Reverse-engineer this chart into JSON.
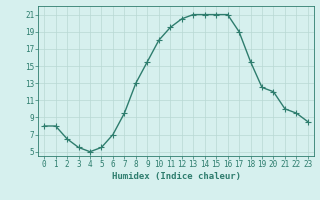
{
  "x": [
    0,
    1,
    2,
    3,
    4,
    5,
    6,
    7,
    8,
    9,
    10,
    11,
    12,
    13,
    14,
    15,
    16,
    17,
    18,
    19,
    20,
    21,
    22,
    23
  ],
  "y": [
    8,
    8,
    6.5,
    5.5,
    5,
    5.5,
    7,
    9.5,
    13,
    15.5,
    18,
    19.5,
    20.5,
    21,
    21,
    21,
    21,
    19,
    15.5,
    12.5,
    12,
    10,
    9.5,
    8.5
  ],
  "line_color": "#2e7d6e",
  "marker": "+",
  "marker_size": 4,
  "linewidth": 1.0,
  "bg_color": "#d6f0ee",
  "grid_color": "#b8d8d4",
  "xlabel": "Humidex (Indice chaleur)",
  "xlim": [
    -0.5,
    23.5
  ],
  "ylim": [
    4.5,
    22
  ],
  "yticks": [
    5,
    7,
    9,
    11,
    13,
    15,
    17,
    19,
    21
  ],
  "xticks": [
    0,
    1,
    2,
    3,
    4,
    5,
    6,
    7,
    8,
    9,
    10,
    11,
    12,
    13,
    14,
    15,
    16,
    17,
    18,
    19,
    20,
    21,
    22,
    23
  ],
  "tick_color": "#2e7d6e",
  "label_fontsize": 6.5,
  "tick_fontsize": 5.5
}
